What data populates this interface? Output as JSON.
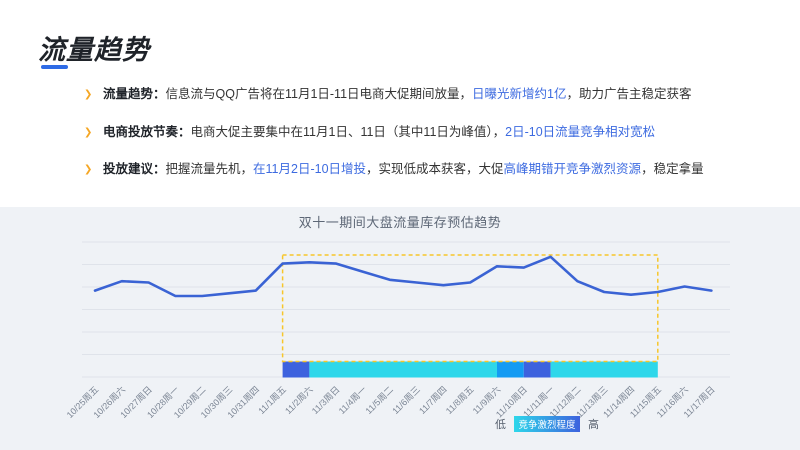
{
  "slide": {
    "title": "流量趋势",
    "bullet_icon": "❯"
  },
  "bullets": [
    {
      "segments": [
        {
          "text": "流量趋势：",
          "style": "bold"
        },
        {
          "text": "信息流与QQ广告将在11月1日-11日电商大促期间放量，",
          "style": "normal"
        },
        {
          "text": "日曝光新增约1亿",
          "style": "blue"
        },
        {
          "text": "，助力广告主稳定获客",
          "style": "normal"
        }
      ]
    },
    {
      "segments": [
        {
          "text": "电商投放节奏：",
          "style": "bold"
        },
        {
          "text": "电商大促主要集中在11月1日、11日（其中11日为峰值），",
          "style": "normal"
        },
        {
          "text": "2日-10日流量竞争相对宽松",
          "style": "blue"
        }
      ]
    },
    {
      "segments": [
        {
          "text": "投放建议：",
          "style": "bold"
        },
        {
          "text": "把握流量先机，",
          "style": "normal"
        },
        {
          "text": "在11月2日-10日增投",
          "style": "blue"
        },
        {
          "text": "，实现低成本获客，大促",
          "style": "normal"
        },
        {
          "text": "高峰期错开竞争激烈资源",
          "style": "blue"
        },
        {
          "text": "，稳定拿量",
          "style": "normal"
        }
      ]
    }
  ],
  "chart_data": {
    "type": "line",
    "title": "双十一期间大盘流量库存预估趋势",
    "x": [
      "10/25周五",
      "10/26周六",
      "10/27周日",
      "10/28周一",
      "10/29周二",
      "10/30周三",
      "10/31周四",
      "11/1周五",
      "11/2周六",
      "11/3周日",
      "11/4周一",
      "11/5周二",
      "11/6周三",
      "11/7周四",
      "11/8周五",
      "11/9周六",
      "11/10周日",
      "11/11周一",
      "11/12周二",
      "11/13周三",
      "11/14周四",
      "11/15周五",
      "11/16周六",
      "11/17周日"
    ],
    "series": [
      {
        "name": "大盘流量库存预估",
        "values": [
          64,
          71,
          70,
          60,
          60,
          62,
          64,
          84,
          85,
          84,
          78,
          72,
          70,
          68,
          70,
          82,
          81,
          89,
          71,
          63,
          61,
          63,
          67,
          64
        ]
      }
    ],
    "ylim": [
      0,
      100
    ],
    "grid": true,
    "highlight_box": {
      "from": "11/1周五",
      "to": "11/15周五"
    },
    "competition_segments": [
      {
        "from": "11/1周五",
        "to": "11/2周六",
        "level": "high"
      },
      {
        "from": "11/2周六",
        "to": "11/9周六",
        "level": "low"
      },
      {
        "from": "11/9周六",
        "to": "11/10周日",
        "level": "medium"
      },
      {
        "from": "11/10周日",
        "to": "11/11周一",
        "level": "high"
      },
      {
        "from": "11/11周一",
        "to": "11/15周五",
        "level": "low"
      }
    ],
    "legend": {
      "low_label": "低",
      "bar_label": "竞争激烈程度",
      "high_label": "高",
      "position": "bottom-center"
    }
  },
  "colors": {
    "accent_blue": "#2E6BE6",
    "text_dark": "#1F2329",
    "text_body": "#333333",
    "text_blue": "#3D6BE0",
    "bullet_arrow": "#F5A623",
    "panel_bg": "#EFF2F6",
    "gridline": "#DFE3EA",
    "line": "#3A63D4",
    "box": "#F7C62A",
    "level_low": "#2ED7EA",
    "level_medium": "#149BF3",
    "level_high": "#3D62DE",
    "axis_label": "#7B8594",
    "chart_title": "#5D6776",
    "legend_text": "#555F6D"
  }
}
